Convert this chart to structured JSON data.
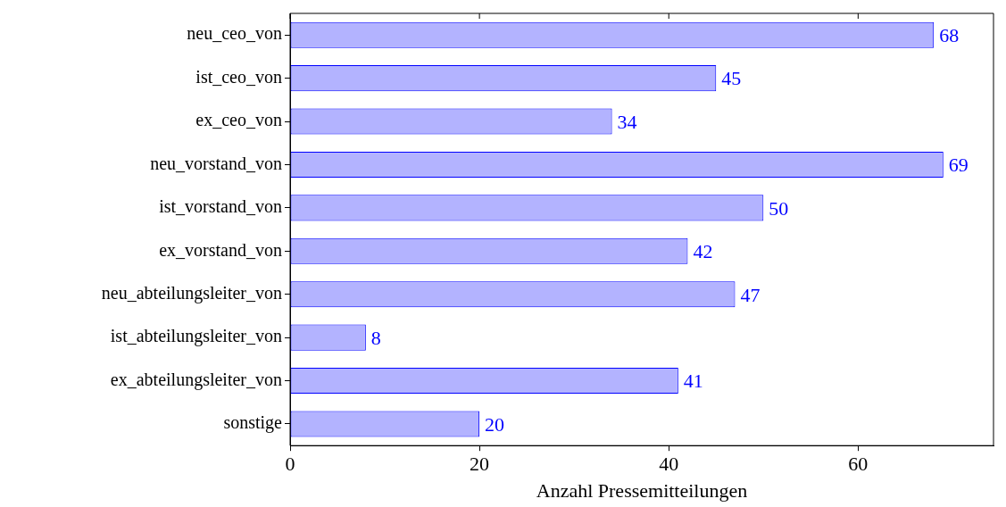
{
  "chart_data": {
    "type": "bar",
    "orientation": "horizontal",
    "xlabel": "Anzahl Pressemitteilungen",
    "categories": [
      "neu_ceo_von",
      "ist_ceo_von",
      "ex_ceo_von",
      "neu_vorstand_von",
      "ist_vorstand_von",
      "ex_vorstand_von",
      "neu_abteilungsleiter_von",
      "ist_abteilungsleiter_von",
      "ex_abteilungsleiter_von",
      "sonstige"
    ],
    "series": [
      {
        "color": "#b3b3ff",
        "values": [
          68,
          45,
          34,
          69,
          50,
          42,
          47,
          8,
          41,
          20
        ]
      }
    ],
    "xlim": [
      0,
      74.3
    ],
    "xticks": [
      0,
      20,
      40,
      60
    ],
    "grid": false,
    "legend": false,
    "data_labels": true
  }
}
